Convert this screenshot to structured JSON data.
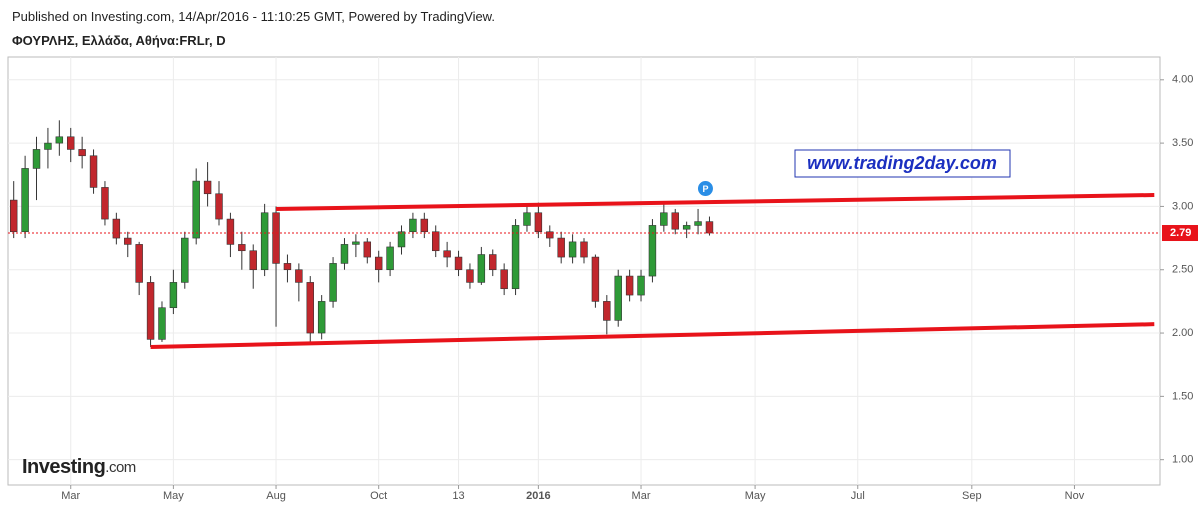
{
  "header": {
    "published": "Published on Investing.com, 14/Apr/2016 - 11:10:25 GMT, Powered by TradingView.",
    "symbol": "ΦΟΥΡΛΗΣ, Ελλάδα, Αθήνα:FRLr, D"
  },
  "watermark": "www.trading2day.com",
  "logo": {
    "brand": "Investing",
    "suffix": ".com"
  },
  "chart_data": {
    "type": "candlestick",
    "categories": [
      null,
      null,
      null,
      null,
      null,
      "Mar",
      null,
      null,
      null,
      null,
      null,
      null,
      null,
      null,
      "May",
      null,
      null,
      null,
      null,
      null,
      null,
      null,
      null,
      "Aug",
      null,
      null,
      null,
      null,
      null,
      null,
      null,
      null,
      "Oct",
      null,
      null,
      null,
      null,
      null,
      null,
      "13",
      null,
      null,
      null,
      null,
      null,
      null,
      "2016",
      null,
      null,
      null,
      null,
      null,
      null,
      null,
      null,
      "Mar",
      null,
      null,
      null,
      null,
      null,
      null,
      null,
      null,
      null,
      "May",
      null,
      null,
      null,
      null,
      null,
      null,
      null,
      null,
      "Jul",
      null,
      null,
      null,
      null,
      null,
      null,
      null,
      null,
      null,
      "Sep",
      null,
      null,
      null,
      null,
      null,
      null,
      null,
      null,
      "Nov",
      null,
      null,
      null,
      null,
      null,
      null,
      null
    ],
    "open": [
      3.05,
      2.8,
      3.3,
      3.45,
      3.5,
      3.55,
      3.45,
      3.4,
      3.15,
      2.9,
      2.75,
      2.7,
      2.4,
      1.95,
      2.2,
      2.4,
      2.75,
      3.2,
      3.1,
      2.9,
      2.7,
      2.65,
      2.5,
      2.95,
      2.55,
      2.5,
      2.4,
      2.0,
      2.25,
      2.55,
      2.7,
      2.72,
      2.6,
      2.5,
      2.68,
      2.8,
      2.9,
      2.8,
      2.65,
      2.6,
      2.5,
      2.4,
      2.62,
      2.5,
      2.35,
      2.85,
      2.95,
      2.8,
      2.75,
      2.6,
      2.72,
      2.6,
      2.25,
      2.1,
      2.45,
      2.3,
      2.45,
      2.85,
      2.95,
      2.82,
      2.85,
      2.88,
      null,
      null,
      null,
      null,
      null,
      null,
      null,
      null,
      null,
      null,
      null,
      null,
      null,
      null,
      null,
      null,
      null,
      null,
      null,
      null,
      null,
      null,
      null,
      null,
      null,
      null,
      null,
      null,
      null,
      null,
      null,
      null,
      null,
      null,
      null,
      null,
      null,
      null,
      null
    ],
    "high": [
      3.2,
      3.4,
      3.55,
      3.62,
      3.68,
      3.62,
      3.55,
      3.45,
      3.2,
      2.95,
      2.8,
      2.72,
      2.45,
      2.25,
      2.5,
      2.8,
      3.3,
      3.35,
      3.2,
      2.95,
      2.8,
      2.7,
      3.02,
      3.0,
      2.62,
      2.55,
      2.45,
      2.3,
      2.6,
      2.75,
      2.78,
      2.75,
      2.65,
      2.72,
      2.85,
      2.95,
      2.95,
      2.85,
      2.72,
      2.65,
      2.55,
      2.68,
      2.66,
      2.55,
      2.9,
      3.0,
      3.03,
      2.85,
      2.8,
      2.78,
      2.75,
      2.62,
      2.3,
      2.5,
      2.5,
      2.5,
      2.9,
      3.02,
      2.98,
      2.88,
      2.98,
      2.92,
      null,
      null,
      null,
      null,
      null,
      null,
      null,
      null,
      null,
      null,
      null,
      null,
      null,
      null,
      null,
      null,
      null,
      null,
      null,
      null,
      null,
      null,
      null,
      null,
      null,
      null,
      null,
      null,
      null,
      null,
      null,
      null,
      null,
      null,
      null,
      null,
      null,
      null,
      null
    ],
    "low": [
      2.75,
      2.75,
      3.05,
      3.3,
      3.4,
      3.35,
      3.3,
      3.1,
      2.85,
      2.7,
      2.6,
      2.3,
      1.89,
      1.93,
      2.15,
      2.35,
      2.7,
      3.0,
      2.85,
      2.6,
      2.5,
      2.35,
      2.45,
      2.05,
      2.4,
      2.25,
      1.92,
      1.95,
      2.2,
      2.5,
      2.6,
      2.55,
      2.4,
      2.45,
      2.62,
      2.75,
      2.75,
      2.6,
      2.52,
      2.45,
      2.35,
      2.38,
      2.45,
      2.3,
      2.3,
      2.8,
      2.75,
      2.68,
      2.55,
      2.55,
      2.55,
      2.2,
      1.99,
      2.05,
      2.25,
      2.25,
      2.4,
      2.8,
      2.78,
      2.75,
      2.78,
      2.77,
      null,
      null,
      null,
      null,
      null,
      null,
      null,
      null,
      null,
      null,
      null,
      null,
      null,
      null,
      null,
      null,
      null,
      null,
      null,
      null,
      null,
      null,
      null,
      null,
      null,
      null,
      null,
      null,
      null,
      null,
      null,
      null,
      null,
      null,
      null,
      null,
      null,
      null,
      null
    ],
    "close": [
      2.8,
      3.3,
      3.45,
      3.5,
      3.55,
      3.45,
      3.4,
      3.15,
      2.9,
      2.75,
      2.7,
      2.4,
      1.95,
      2.2,
      2.4,
      2.75,
      3.2,
      3.1,
      2.9,
      2.7,
      2.65,
      2.5,
      2.95,
      2.55,
      2.5,
      2.4,
      2.0,
      2.25,
      2.55,
      2.7,
      2.72,
      2.6,
      2.5,
      2.68,
      2.8,
      2.9,
      2.8,
      2.65,
      2.6,
      2.5,
      2.4,
      2.62,
      2.5,
      2.35,
      2.85,
      2.95,
      2.8,
      2.75,
      2.6,
      2.72,
      2.6,
      2.25,
      2.1,
      2.45,
      2.3,
      2.45,
      2.85,
      2.95,
      2.82,
      2.85,
      2.88,
      2.79,
      null,
      null,
      null,
      null,
      null,
      null,
      null,
      null,
      null,
      null,
      null,
      null,
      null,
      null,
      null,
      null,
      null,
      null,
      null,
      null,
      null,
      null,
      null,
      null,
      null,
      null,
      null,
      null,
      null,
      null,
      null,
      null,
      null,
      null,
      null,
      null,
      null,
      null,
      null
    ],
    "up_color": "#2e9a37",
    "down_color": "#c1272d",
    "ylim": [
      0.8,
      4.18
    ],
    "yticks": [
      {
        "value": 1,
        "label": "1.00"
      },
      {
        "value": 1.5,
        "label": "1.50"
      },
      {
        "value": 2,
        "label": "2.00"
      },
      {
        "value": 2.5,
        "label": "2.50"
      },
      {
        "value": 3,
        "label": "3.00"
      },
      {
        "value": 3.5,
        "label": "3.50"
      },
      {
        "value": 4,
        "label": "4.00"
      }
    ],
    "grid": true,
    "last_price": 2.79,
    "last_price_color": "#e8131a",
    "marker": "P",
    "trendlines": [
      {
        "color": "#e8131a",
        "x": [
          23,
          100
        ],
        "y": [
          2.98,
          3.09
        ]
      },
      {
        "color": "#e8131a",
        "x": [
          12,
          100
        ],
        "y": [
          1.89,
          2.07
        ]
      }
    ]
  }
}
